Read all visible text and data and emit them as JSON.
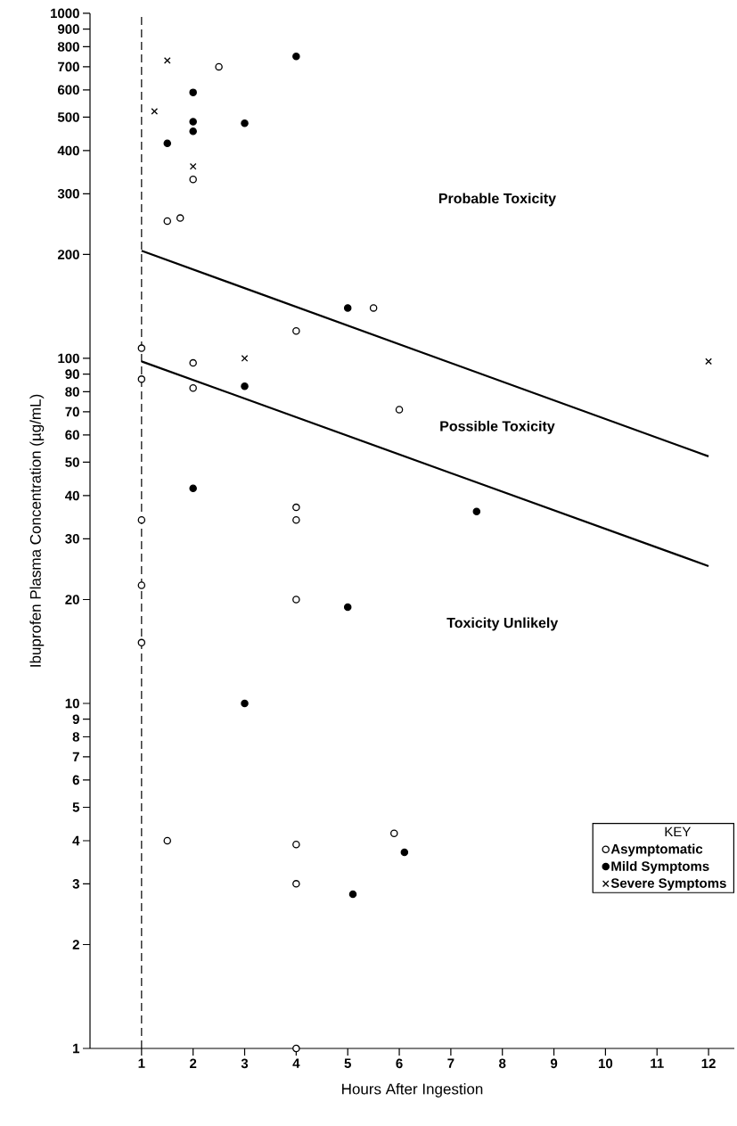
{
  "chart_data": {
    "type": "scatter",
    "xlabel": "Hours After Ingestion",
    "ylabel": "Ibuprofen Plasma Concentration (µg/mL)",
    "legend_title": "KEY",
    "legend": "bottom right",
    "log": "y",
    "xlim": [
      0,
      12.5
    ],
    "ylim": [
      1,
      1000
    ],
    "xticks": [
      1,
      2,
      3,
      4,
      5,
      6,
      7,
      8,
      9,
      10,
      11,
      12
    ],
    "yticks": [
      1,
      2,
      3,
      4,
      5,
      6,
      7,
      8,
      9,
      10,
      20,
      30,
      40,
      50,
      60,
      70,
      80,
      90,
      100,
      200,
      300,
      400,
      500,
      600,
      700,
      800,
      900,
      1000
    ],
    "series": [
      {
        "name": "Asymptomatic",
        "color": "#ffffff",
        "marker": "circle",
        "x": [
          1,
          1,
          1,
          1,
          1,
          1.5,
          1.75,
          2,
          2.5,
          4,
          5.5,
          2,
          2,
          6,
          4,
          4,
          4,
          1.5,
          4,
          4,
          5.9,
          4
        ],
        "values": [
          107,
          87,
          34,
          22,
          15,
          250,
          255,
          330,
          700,
          120,
          140,
          97,
          82,
          71,
          37,
          34,
          20,
          4,
          3.9,
          3,
          4.2,
          1
        ]
      },
      {
        "name": "Mild Symptoms",
        "color": "#000000",
        "marker": "circle",
        "x": [
          1.5,
          2,
          2,
          2,
          3,
          4,
          5,
          3,
          2,
          7.5,
          5,
          3,
          6.1,
          5.1
        ],
        "values": [
          420,
          590,
          485,
          455,
          480,
          750,
          140,
          83,
          42,
          36,
          19,
          10,
          3.7,
          2.8
        ]
      },
      {
        "name": "Severe Symptoms",
        "color": "#000000",
        "marker": "cross",
        "x": [
          1.5,
          1.25,
          2,
          3,
          12
        ],
        "values": [
          730,
          520,
          360,
          100,
          98
        ]
      },
      {
        "type": "line",
        "color": "#000000",
        "marker": "none",
        "x": [
          1,
          12
        ],
        "values": [
          205,
          52
        ]
      },
      {
        "type": "line",
        "color": "#000000",
        "marker": "none",
        "x": [
          1,
          12
        ],
        "values": [
          98,
          25
        ]
      }
    ],
    "ref_lines": [
      {
        "axis": "x",
        "value": 1,
        "line_style": "dashed",
        "color": "#000000"
      }
    ],
    "annotations": [
      "Probable Toxicity",
      "Possible Toxicity",
      "Toxicity Unlikely"
    ]
  }
}
